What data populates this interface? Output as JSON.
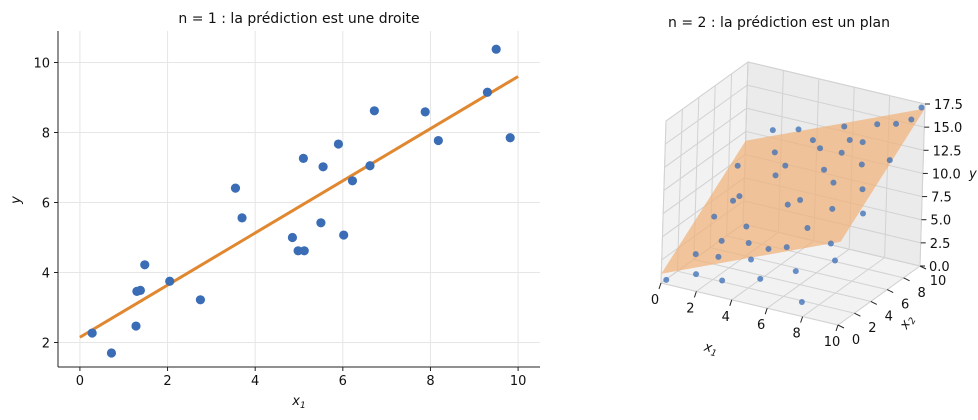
{
  "chart_data": [
    {
      "type": "scatter",
      "title": "n = 1 : la prédiction est une droite",
      "xlabel": "x",
      "xlabel_sub": "1",
      "ylabel": "y",
      "xlim": [
        -0.5,
        10.5
      ],
      "ylim": [
        1.3,
        10.9
      ],
      "xticks": [
        "0",
        "2",
        "4",
        "6",
        "8",
        "10"
      ],
      "yticks": [
        "2",
        "4",
        "6",
        "8",
        "10"
      ],
      "grid": true,
      "colors": {
        "points": "#3A6DB5",
        "line": "#E0872F"
      },
      "points": [
        [
          0.28,
          2.27
        ],
        [
          0.72,
          1.7
        ],
        [
          1.28,
          2.47
        ],
        [
          1.3,
          3.46
        ],
        [
          1.38,
          3.49
        ],
        [
          1.48,
          4.22
        ],
        [
          2.05,
          3.75
        ],
        [
          2.75,
          3.22
        ],
        [
          3.55,
          6.41
        ],
        [
          3.7,
          5.56
        ],
        [
          4.85,
          5.0
        ],
        [
          4.98,
          4.62
        ],
        [
          5.12,
          4.62
        ],
        [
          5.1,
          7.26
        ],
        [
          5.5,
          5.42
        ],
        [
          5.55,
          7.02
        ],
        [
          5.9,
          7.67
        ],
        [
          6.02,
          5.07
        ],
        [
          6.22,
          6.62
        ],
        [
          6.62,
          7.05
        ],
        [
          6.72,
          8.62
        ],
        [
          7.88,
          8.59
        ],
        [
          8.18,
          7.77
        ],
        [
          9.3,
          9.15
        ],
        [
          9.5,
          10.38
        ],
        [
          9.82,
          7.85
        ]
      ],
      "line": {
        "x": [
          0,
          10
        ],
        "y": [
          2.15,
          9.6
        ]
      }
    },
    {
      "type": "scatter",
      "title": "n = 2 : la prédiction est un plan",
      "xlabel": "x",
      "xlabel_sub": "1",
      "ylabel": "x",
      "ylabel_sub": "2",
      "zlabel": "y",
      "xlim": [
        0,
        10
      ],
      "ylim": [
        0,
        10
      ],
      "zlim": [
        0,
        17.5
      ],
      "xticks": [
        "0",
        "2",
        "4",
        "6",
        "8",
        "10"
      ],
      "yticks": [
        "0",
        "2",
        "4",
        "6",
        "8",
        "10"
      ],
      "zticks": [
        "0.0",
        "2.5",
        "5.0",
        "7.5",
        "10.0",
        "12.5",
        "15.0",
        "17.5"
      ],
      "colors": {
        "points": "#3A6DB5",
        "plane": "#F0B27A"
      },
      "plane": {
        "intercept": 1.0,
        "coef_x1": 0.8,
        "coef_x2": 0.8
      },
      "points": [
        [
          0.5,
          8.0,
          7.8
        ],
        [
          0.8,
          4.6,
          4.6
        ],
        [
          1.0,
          2.0,
          2.3
        ],
        [
          1.2,
          6.0,
          5.6
        ],
        [
          1.5,
          1.0,
          1.0
        ],
        [
          1.8,
          3.4,
          3.2
        ],
        [
          2.0,
          5.0,
          7.1
        ],
        [
          2.2,
          8.8,
          9.5
        ],
        [
          2.5,
          1.5,
          3.0
        ],
        [
          2.8,
          4.2,
          4.7
        ],
        [
          3.0,
          7.2,
          8.4
        ],
        [
          3.2,
          0.5,
          1.4
        ],
        [
          3.5,
          3.0,
          4.0
        ],
        [
          3.8,
          6.6,
          10.2
        ],
        [
          4.0,
          9.5,
          11.2
        ],
        [
          4.2,
          1.8,
          3.3
        ],
        [
          4.5,
          5.5,
          7.0
        ],
        [
          4.8,
          2.6,
          4.2
        ],
        [
          5.0,
          8.2,
          11.6
        ],
        [
          5.2,
          0.8,
          2.3
        ],
        [
          5.5,
          4.8,
          8.4
        ],
        [
          5.8,
          7.0,
          10.4
        ],
        [
          6.0,
          2.2,
          5.2
        ],
        [
          6.2,
          9.2,
          12.4
        ],
        [
          6.5,
          3.6,
          6.6
        ],
        [
          6.8,
          6.0,
          10.1
        ],
        [
          7.0,
          1.2,
          3.7
        ],
        [
          7.2,
          8.6,
          13.0
        ],
        [
          7.5,
          4.4,
          8.6
        ],
        [
          7.8,
          0.3,
          1.3
        ],
        [
          8.0,
          6.8,
          12.1
        ],
        [
          8.2,
          2.8,
          6.2
        ],
        [
          8.5,
          9.8,
          14.8
        ],
        [
          8.8,
          5.2,
          10.8
        ],
        [
          9.0,
          1.6,
          5.5
        ],
        [
          9.2,
          7.6,
          12.6
        ],
        [
          9.5,
          3.8,
          9.4
        ],
        [
          9.8,
          8.8,
          16.5
        ],
        [
          1.6,
          9.8,
          11.0
        ],
        [
          3.4,
          9.0,
          12.4
        ],
        [
          5.6,
          9.8,
          13.2
        ],
        [
          9.9,
          9.8,
          17.2
        ],
        [
          7.4,
          9.9,
          14.2
        ],
        [
          6.4,
          7.8,
          12.0
        ],
        [
          0.2,
          0.2,
          0.3
        ]
      ]
    }
  ]
}
